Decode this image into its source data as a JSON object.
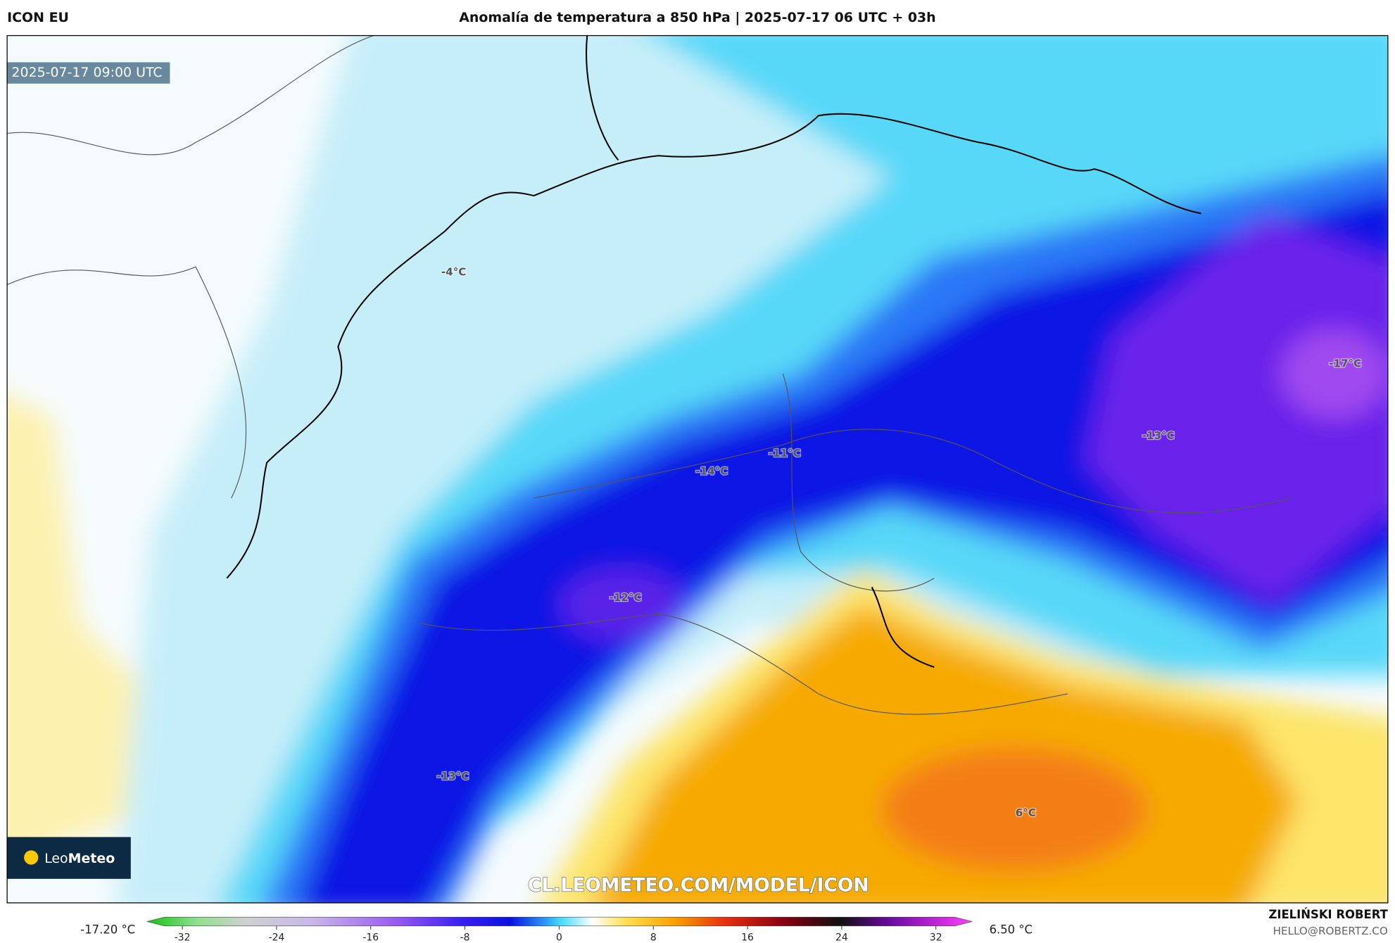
{
  "header": {
    "model": "ICON EU",
    "title": "Anomalía de temperatura a 850 hPa | 2025-07-17 06 UTC + 03h"
  },
  "map": {
    "timestamp": "2025-07-17 09:00 UTC",
    "labels": [
      "-4°C",
      "-17°C",
      "-13°C",
      "-11°C",
      "-14°C",
      "-12°C",
      "-13°C",
      "6°C"
    ],
    "watermark": "CL.LEOMETEO.COM/MODEL/ICON",
    "logo": {
      "first": "Leo",
      "second": "Meteo"
    }
  },
  "colorbar": {
    "min_label": "-17.20 °C",
    "max_label": "6.50 °C",
    "ticks": [
      -32,
      -24,
      -16,
      -8,
      0,
      8,
      16,
      24,
      32
    ]
  },
  "footer": {
    "author": "ZIELIŃSKI ROBERT",
    "contact": "HELLO@ROBERTZ.CO"
  }
}
